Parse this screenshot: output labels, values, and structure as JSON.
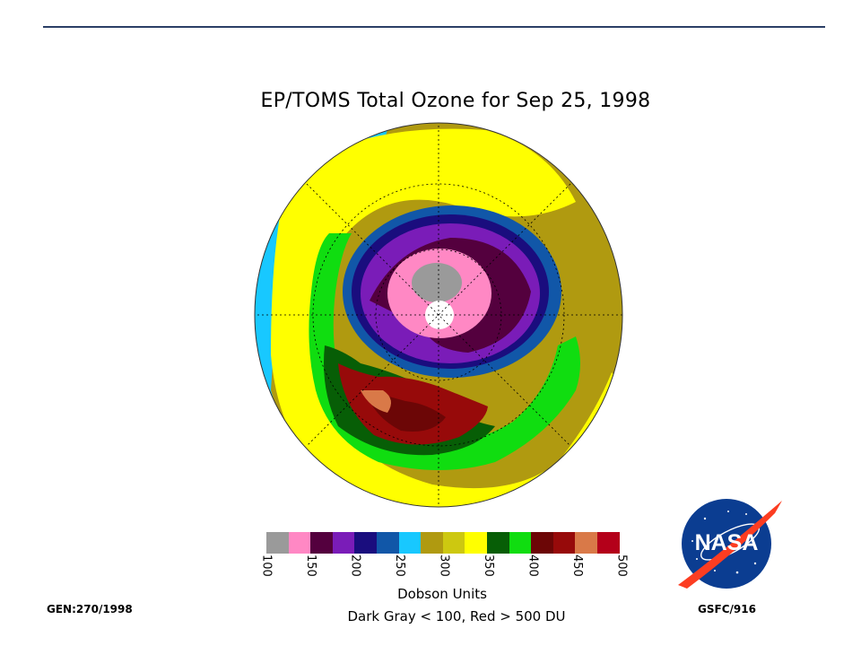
{
  "title": "EP/TOMS Total Ozone for Sep 25, 1998",
  "colorbar": {
    "colors": [
      "#9a9a9a",
      "#ff88c4",
      "#54003e",
      "#7a1cb8",
      "#1a0d7e",
      "#1157a8",
      "#18c8ff",
      "#b09a10",
      "#cdc810",
      "#ffff00",
      "#075e06",
      "#10dd10",
      "#6c0606",
      "#970a0a",
      "#d97948",
      "#b4001a"
    ],
    "tick_labels": [
      "100",
      "150",
      "200",
      "250",
      "300",
      "350",
      "400",
      "450",
      "500"
    ],
    "units_label": "Dobson Units",
    "note": "Dark Gray < 100, Red > 500 DU"
  },
  "footer": {
    "left": "GEN:270/1998",
    "right": "GSFC/916"
  },
  "logo": {
    "text": "NASA"
  }
}
